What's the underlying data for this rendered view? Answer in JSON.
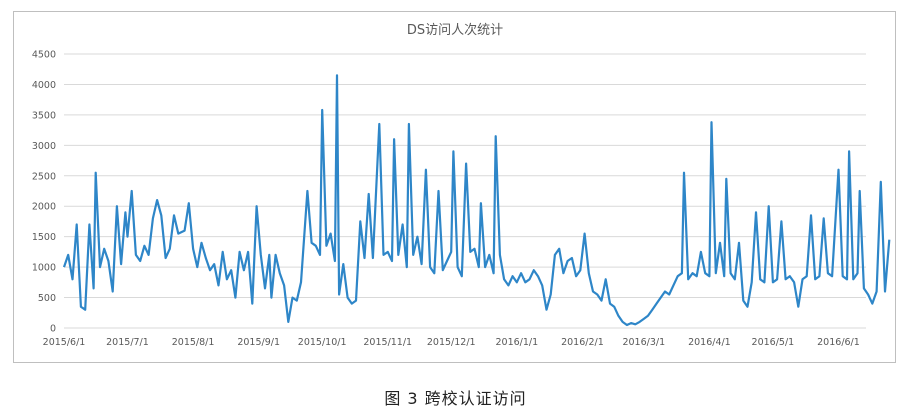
{
  "caption": "图 3   跨校认证访问",
  "colors": {
    "line": "#2e86c8",
    "grid": "#d9d9d9",
    "text": "#595959",
    "border": "#bfbfbf"
  },
  "chart_data": {
    "type": "line",
    "title": "DS访问人次统计",
    "xlabel": "",
    "ylabel": "",
    "ylim": [
      0,
      4500
    ],
    "yticks": [
      0,
      500,
      1000,
      1500,
      2000,
      2500,
      3000,
      3500,
      4000,
      4500
    ],
    "grid": true,
    "legend": "none",
    "xlim": [
      "2015/6/1",
      "2016/6/14"
    ],
    "xticks": [
      "2015/6/1",
      "2015/7/1",
      "2015/8/1",
      "2015/9/1",
      "2015/10/1",
      "2015/11/1",
      "2015/12/1",
      "2016/1/1",
      "2016/2/1",
      "2016/3/1",
      "2016/4/1",
      "2016/5/1",
      "2016/6/1"
    ],
    "series": [
      {
        "name": "",
        "points": [
          [
            "2015/6/1",
            1000
          ],
          [
            "2015/6/3",
            1200
          ],
          [
            "2015/6/5",
            800
          ],
          [
            "2015/6/7",
            1700
          ],
          [
            "2015/6/9",
            350
          ],
          [
            "2015/6/11",
            300
          ],
          [
            "2015/6/13",
            1700
          ],
          [
            "2015/6/15",
            650
          ],
          [
            "2015/6/16",
            2550
          ],
          [
            "2015/6/18",
            1000
          ],
          [
            "2015/6/20",
            1300
          ],
          [
            "2015/6/22",
            1100
          ],
          [
            "2015/6/24",
            600
          ],
          [
            "2015/6/26",
            2000
          ],
          [
            "2015/6/28",
            1050
          ],
          [
            "2015/6/30",
            1900
          ],
          [
            "2015/7/1",
            1500
          ],
          [
            "2015/7/3",
            2250
          ],
          [
            "2015/7/5",
            1200
          ],
          [
            "2015/7/7",
            1100
          ],
          [
            "2015/7/9",
            1350
          ],
          [
            "2015/7/11",
            1200
          ],
          [
            "2015/7/13",
            1800
          ],
          [
            "2015/7/15",
            2100
          ],
          [
            "2015/7/17",
            1850
          ],
          [
            "2015/7/19",
            1150
          ],
          [
            "2015/7/21",
            1300
          ],
          [
            "2015/7/23",
            1850
          ],
          [
            "2015/7/25",
            1550
          ],
          [
            "2015/7/28",
            1600
          ],
          [
            "2015/7/30",
            2050
          ],
          [
            "2015/8/1",
            1300
          ],
          [
            "2015/8/3",
            1000
          ],
          [
            "2015/8/5",
            1400
          ],
          [
            "2015/8/7",
            1150
          ],
          [
            "2015/8/9",
            950
          ],
          [
            "2015/8/11",
            1050
          ],
          [
            "2015/8/13",
            700
          ],
          [
            "2015/8/15",
            1250
          ],
          [
            "2015/8/17",
            800
          ],
          [
            "2015/8/19",
            950
          ],
          [
            "2015/8/21",
            500
          ],
          [
            "2015/8/23",
            1250
          ],
          [
            "2015/8/25",
            950
          ],
          [
            "2015/8/27",
            1250
          ],
          [
            "2015/8/29",
            400
          ],
          [
            "2015/8/31",
            2000
          ],
          [
            "2015/9/2",
            1200
          ],
          [
            "2015/9/4",
            650
          ],
          [
            "2015/9/6",
            1200
          ],
          [
            "2015/9/7",
            500
          ],
          [
            "2015/9/9",
            1200
          ],
          [
            "2015/9/11",
            900
          ],
          [
            "2015/9/13",
            700
          ],
          [
            "2015/9/15",
            100
          ],
          [
            "2015/9/17",
            500
          ],
          [
            "2015/9/19",
            450
          ],
          [
            "2015/9/21",
            750
          ],
          [
            "2015/9/24",
            2250
          ],
          [
            "2015/9/26",
            1400
          ],
          [
            "2015/9/28",
            1350
          ],
          [
            "2015/9/30",
            1200
          ],
          [
            "2015/10/1",
            3580
          ],
          [
            "2015/10/3",
            1350
          ],
          [
            "2015/10/5",
            1550
          ],
          [
            "2015/10/7",
            1100
          ],
          [
            "2015/10/8",
            4150
          ],
          [
            "2015/10/9",
            550
          ],
          [
            "2015/10/11",
            1050
          ],
          [
            "2015/10/13",
            500
          ],
          [
            "2015/10/15",
            400
          ],
          [
            "2015/10/17",
            450
          ],
          [
            "2015/10/19",
            1750
          ],
          [
            "2015/10/21",
            1150
          ],
          [
            "2015/10/23",
            2200
          ],
          [
            "2015/10/25",
            1150
          ],
          [
            "2015/10/28",
            3350
          ],
          [
            "2015/10/30",
            1200
          ],
          [
            "2015/11/1",
            1250
          ],
          [
            "2015/11/3",
            1100
          ],
          [
            "2015/11/4",
            3100
          ],
          [
            "2015/11/6",
            1200
          ],
          [
            "2015/11/8",
            1700
          ],
          [
            "2015/11/10",
            1000
          ],
          [
            "2015/11/11",
            3350
          ],
          [
            "2015/11/13",
            1200
          ],
          [
            "2015/11/15",
            1500
          ],
          [
            "2015/11/17",
            1050
          ],
          [
            "2015/11/19",
            2600
          ],
          [
            "2015/11/21",
            1000
          ],
          [
            "2015/11/23",
            900
          ],
          [
            "2015/11/25",
            2250
          ],
          [
            "2015/11/27",
            950
          ],
          [
            "2015/11/29",
            1100
          ],
          [
            "2015/12/1",
            1250
          ],
          [
            "2015/12/2",
            2900
          ],
          [
            "2015/12/4",
            1000
          ],
          [
            "2015/12/6",
            850
          ],
          [
            "2015/12/8",
            2700
          ],
          [
            "2015/12/10",
            1250
          ],
          [
            "2015/12/12",
            1300
          ],
          [
            "2015/12/14",
            1000
          ],
          [
            "2015/12/15",
            2050
          ],
          [
            "2015/12/17",
            1000
          ],
          [
            "2015/12/19",
            1200
          ],
          [
            "2015/12/21",
            900
          ],
          [
            "2015/12/22",
            3150
          ],
          [
            "2015/12/24",
            1200
          ],
          [
            "2015/12/26",
            800
          ],
          [
            "2015/12/28",
            700
          ],
          [
            "2015/12/30",
            850
          ],
          [
            "2016/1/1",
            750
          ],
          [
            "2016/1/3",
            900
          ],
          [
            "2016/1/5",
            750
          ],
          [
            "2016/1/7",
            800
          ],
          [
            "2016/1/9",
            950
          ],
          [
            "2016/1/11",
            850
          ],
          [
            "2016/1/13",
            700
          ],
          [
            "2016/1/15",
            300
          ],
          [
            "2016/1/17",
            550
          ],
          [
            "2016/1/19",
            1200
          ],
          [
            "2016/1/21",
            1300
          ],
          [
            "2016/1/23",
            900
          ],
          [
            "2016/1/25",
            1100
          ],
          [
            "2016/1/27",
            1150
          ],
          [
            "2016/1/29",
            850
          ],
          [
            "2016/1/31",
            950
          ],
          [
            "2016/2/2",
            1550
          ],
          [
            "2016/2/4",
            900
          ],
          [
            "2016/2/6",
            600
          ],
          [
            "2016/2/8",
            550
          ],
          [
            "2016/2/10",
            450
          ],
          [
            "2016/2/12",
            800
          ],
          [
            "2016/2/14",
            400
          ],
          [
            "2016/2/16",
            350
          ],
          [
            "2016/2/18",
            200
          ],
          [
            "2016/2/20",
            100
          ],
          [
            "2016/2/22",
            50
          ],
          [
            "2016/2/24",
            80
          ],
          [
            "2016/2/26",
            60
          ],
          [
            "2016/2/28",
            100
          ],
          [
            "2016/3/1",
            150
          ],
          [
            "2016/3/3",
            200
          ],
          [
            "2016/3/5",
            300
          ],
          [
            "2016/3/7",
            400
          ],
          [
            "2016/3/9",
            500
          ],
          [
            "2016/3/11",
            600
          ],
          [
            "2016/3/13",
            550
          ],
          [
            "2016/3/15",
            700
          ],
          [
            "2016/3/17",
            850
          ],
          [
            "2016/3/19",
            900
          ],
          [
            "2016/3/20",
            2550
          ],
          [
            "2016/3/22",
            800
          ],
          [
            "2016/3/24",
            900
          ],
          [
            "2016/3/26",
            850
          ],
          [
            "2016/3/28",
            1250
          ],
          [
            "2016/3/30",
            900
          ],
          [
            "2016/4/1",
            850
          ],
          [
            "2016/4/2",
            3380
          ],
          [
            "2016/4/4",
            900
          ],
          [
            "2016/4/6",
            1400
          ],
          [
            "2016/4/8",
            850
          ],
          [
            "2016/4/9",
            2450
          ],
          [
            "2016/4/11",
            900
          ],
          [
            "2016/4/13",
            800
          ],
          [
            "2016/4/15",
            1400
          ],
          [
            "2016/4/17",
            450
          ],
          [
            "2016/4/19",
            350
          ],
          [
            "2016/4/21",
            750
          ],
          [
            "2016/4/23",
            1900
          ],
          [
            "2016/4/25",
            800
          ],
          [
            "2016/4/27",
            750
          ],
          [
            "2016/4/29",
            2000
          ],
          [
            "2016/5/1",
            750
          ],
          [
            "2016/5/3",
            800
          ],
          [
            "2016/5/5",
            1750
          ],
          [
            "2016/5/7",
            800
          ],
          [
            "2016/5/9",
            850
          ],
          [
            "2016/5/11",
            750
          ],
          [
            "2016/5/13",
            350
          ],
          [
            "2016/5/15",
            800
          ],
          [
            "2016/5/17",
            850
          ],
          [
            "2016/5/19",
            1850
          ],
          [
            "2016/5/21",
            800
          ],
          [
            "2016/5/23",
            850
          ],
          [
            "2016/5/25",
            1800
          ],
          [
            "2016/5/27",
            900
          ],
          [
            "2016/5/29",
            850
          ],
          [
            "2016/6/1",
            2600
          ],
          [
            "2016/6/3",
            850
          ],
          [
            "2016/6/5",
            800
          ],
          [
            "2016/6/6",
            2900
          ],
          [
            "2016/6/8",
            800
          ],
          [
            "2016/6/10",
            900
          ],
          [
            "2016/6/11",
            2250
          ],
          [
            "2016/6/13",
            650
          ],
          [
            "2016/6/15",
            550
          ],
          [
            "2016/6/17",
            400
          ],
          [
            "2016/6/19",
            600
          ],
          [
            "2016/6/21",
            2400
          ],
          [
            "2016/6/23",
            600
          ],
          [
            "2016/6/25",
            1450
          ]
        ]
      }
    ]
  }
}
